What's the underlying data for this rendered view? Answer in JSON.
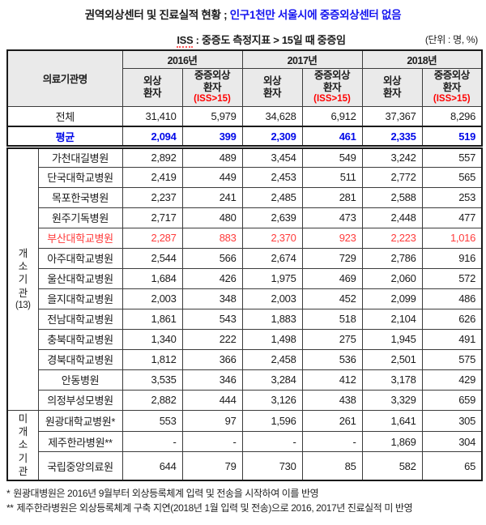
{
  "title": {
    "main": "권역외상센터 및 진료실적 현황 ;",
    "highlight": "인구1천만 서울시에 중증외상센터 없음"
  },
  "subtitle": {
    "iss_label": "ISS",
    "text": " : 중증도 측정지표 > 15일 때 중증임",
    "unit": "(단위 : 명, %)"
  },
  "colors": {
    "title_blue": "#1414f0",
    "average_blue": "#0008e8",
    "alert_red": "#ff3b3b",
    "note_red": "#ff0000",
    "header_bg": "#eaeaea"
  },
  "table": {
    "name_header": "의료기관명",
    "year_headers": [
      "2016년",
      "2017년",
      "2018년"
    ],
    "sub_headers": {
      "trauma": "외상\n환자",
      "severe": "중증외상\n환자",
      "severe_note": "(ISS>15)"
    },
    "summary_rows": [
      {
        "label": "전체",
        "style": "total",
        "values": [
          "31,410",
          "5,979",
          "34,628",
          "6,912",
          "37,367",
          "8,296"
        ]
      },
      {
        "label": "평균",
        "style": "average",
        "values": [
          "2,094",
          "399",
          "2,309",
          "461",
          "2,335",
          "519"
        ]
      }
    ],
    "groups": [
      {
        "label": "개소기관",
        "count": "(13)",
        "rows": [
          {
            "name": "가천대길병원",
            "values": [
              "2,892",
              "489",
              "3,454",
              "549",
              "3,242",
              "557"
            ]
          },
          {
            "name": "단국대학교병원",
            "values": [
              "2,419",
              "449",
              "2,453",
              "511",
              "2,772",
              "565"
            ]
          },
          {
            "name": "목포한국병원",
            "values": [
              "2,237",
              "241",
              "2,485",
              "281",
              "2,588",
              "253"
            ]
          },
          {
            "name": "원주기독병원",
            "values": [
              "2,717",
              "480",
              "2,639",
              "473",
              "2,448",
              "477"
            ]
          },
          {
            "name": "부산대학교병원",
            "style": "alert",
            "values": [
              "2,287",
              "883",
              "2,370",
              "923",
              "2,223",
              "1,016"
            ]
          },
          {
            "name": "아주대학교병원",
            "values": [
              "2,544",
              "566",
              "2,674",
              "729",
              "2,786",
              "916"
            ]
          },
          {
            "name": "울산대학교병원",
            "values": [
              "1,684",
              "426",
              "1,975",
              "469",
              "2,060",
              "572"
            ]
          },
          {
            "name": "을지대학교병원",
            "values": [
              "2,003",
              "348",
              "2,003",
              "452",
              "2,099",
              "486"
            ]
          },
          {
            "name": "전남대학교병원",
            "values": [
              "1,861",
              "543",
              "1,883",
              "518",
              "2,104",
              "626"
            ]
          },
          {
            "name": "충북대학교병원",
            "values": [
              "1,340",
              "222",
              "1,498",
              "275",
              "1,945",
              "491"
            ]
          },
          {
            "name": "경북대학교병원",
            "values": [
              "1,812",
              "366",
              "2,458",
              "536",
              "2,501",
              "575"
            ]
          },
          {
            "name": "안동병원",
            "values": [
              "3,535",
              "346",
              "3,284",
              "412",
              "3,178",
              "429"
            ]
          },
          {
            "name": "의정부성모병원",
            "values": [
              "2,882",
              "444",
              "3,126",
              "438",
              "3,329",
              "659"
            ]
          }
        ]
      },
      {
        "label": "미개소기관",
        "count": "",
        "rows": [
          {
            "name": "원광대학교병원*",
            "values": [
              "553",
              "97",
              "1,596",
              "261",
              "1,641",
              "305"
            ]
          },
          {
            "name": "제주한라병원**",
            "values": [
              "-",
              "-",
              "-",
              "-",
              "1,869",
              "304"
            ]
          },
          {
            "name": "국립중앙의료원",
            "style": "tall",
            "values": [
              "644",
              "79",
              "730",
              "85",
              "582",
              "65"
            ]
          }
        ]
      }
    ]
  },
  "footnotes": [
    {
      "marker": "*",
      "text": "원광대병원은 2016년 9월부터 외상등록체계 입력 및 전송을 시작하여 이를 반영"
    },
    {
      "marker": "**",
      "text": "제주한라병원은 외상등록체계 구축 지연(2018년 1월 입력 및 전송)으로 2016, 2017년 진료실적 미 반영"
    }
  ]
}
